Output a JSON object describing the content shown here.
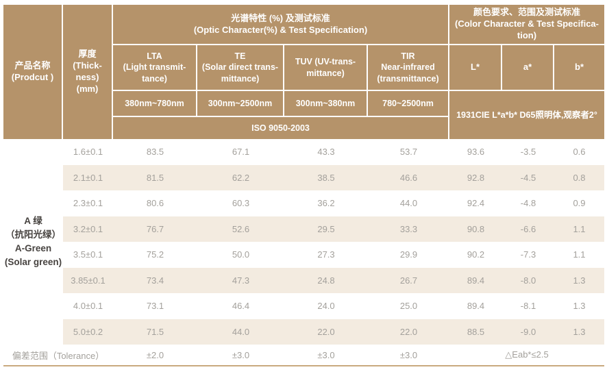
{
  "header": {
    "product_label": "产品名称\n(Prodcut )",
    "thickness_label": "厚度\n(Thick-\nness)\n(mm)",
    "optic_group": "光谱特性 (%) 及测试标准\n(Optic Character(%) & Test Specification)",
    "color_group": "颜色要求、范围及测试标准\n(Color Character & Test Specifica-\ntion)",
    "lta": "LTA\n(Light transmit-\ntance)",
    "te": "TE\n(Solar direct trans-\nmittance)",
    "tuv": "TUV (UV-trans-\nmittance)",
    "tir": "TIR\nNear-infrared\n(transmittance)",
    "lta_range": "380nm~780nm",
    "te_range": "300nm~2500nm",
    "tuv_range": "300nm~380nm",
    "tir_range": "780~2500nm",
    "iso": "ISO 9050-2003",
    "cie": "1931CIE L*a*b*  D65照明体,观察者2°",
    "l_star": "L*",
    "a_star": "a*",
    "b_star": "b*"
  },
  "product_name": "A 绿\n（抗阳光绿）\nA-Green\n(Solar green)",
  "rows": [
    {
      "thickness": "1.6±0.1",
      "lta": "83.5",
      "te": "67.1",
      "tuv": "43.3",
      "tir": "53.7",
      "l": "93.6",
      "a": "-3.5",
      "b": "0.6"
    },
    {
      "thickness": "2.1±0.1",
      "lta": "81.5",
      "te": "62.2",
      "tuv": "38.5",
      "tir": "46.6",
      "l": "92.8",
      "a": "-4.5",
      "b": "0.8"
    },
    {
      "thickness": "2.3±0.1",
      "lta": "80.6",
      "te": "60.3",
      "tuv": "36.2",
      "tir": "44.0",
      "l": "92.4",
      "a": "-4.8",
      "b": "0.9"
    },
    {
      "thickness": "3.2±0.1",
      "lta": "76.7",
      "te": "52.6",
      "tuv": "29.5",
      "tir": "33.3",
      "l": "90.8",
      "a": "-6.6",
      "b": "1.1"
    },
    {
      "thickness": "3.5±0.1",
      "lta": "75.2",
      "te": "50.0",
      "tuv": "27.3",
      "tir": "29.9",
      "l": "90.2",
      "a": "-7.3",
      "b": "1.1"
    },
    {
      "thickness": "3.85±0.1",
      "lta": "73.4",
      "te": "47.3",
      "tuv": "24.8",
      "tir": "26.7",
      "l": "89.4",
      "a": "-8.0",
      "b": "1.3"
    },
    {
      "thickness": "4.0±0.1",
      "lta": "73.1",
      "te": "46.4",
      "tuv": "24.0",
      "tir": "25.0",
      "l": "89.4",
      "a": "-8.1",
      "b": "1.3"
    },
    {
      "thickness": "5.0±0.2",
      "lta": "71.5",
      "te": "44.0",
      "tuv": "22.0",
      "tir": "22.0",
      "l": "88.5",
      "a": "-9.0",
      "b": "1.3"
    }
  ],
  "tolerance": {
    "label": "偏差范围（Tolerance）",
    "lta": "±2.0",
    "te": "±3.0",
    "tuv": "±3.0",
    "tir": "±3.0",
    "lab": "△Eab*≤2.5"
  },
  "colors": {
    "header_bg": "#b5936a",
    "stripe_bg": "#f3ebe0",
    "data_text": "#a3a09b",
    "bottom_line": "#c9a97e"
  }
}
